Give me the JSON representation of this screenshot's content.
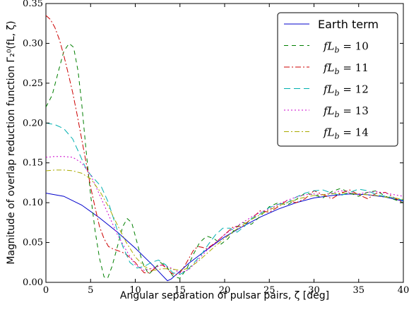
{
  "chart_data": {
    "type": "line",
    "title": "",
    "xlabel": "Angular separation of pulsar pairs, ζ [deg]",
    "ylabel": "Magnitude of overlap reduction function Γ₂⁰(fL, ζ)",
    "xlim": [
      0,
      40
    ],
    "ylim": [
      0,
      0.35
    ],
    "x_ticks": [
      0,
      5,
      10,
      15,
      20,
      25,
      30,
      35,
      40
    ],
    "x_tick_labels": [
      "0",
      "5",
      "10",
      "15",
      "20",
      "25",
      "30",
      "35",
      "40"
    ],
    "y_ticks": [
      0,
      0.05,
      0.1,
      0.15,
      0.2,
      0.25,
      0.3,
      0.35
    ],
    "y_tick_labels": [
      "0.00",
      "0.05",
      "0.10",
      "0.15",
      "0.20",
      "0.25",
      "0.30",
      "0.35"
    ],
    "grid": false,
    "legend_position": "top-right",
    "series": [
      {
        "name": "Earth term",
        "color": "#0000cc",
        "dash": "solid",
        "x": [
          0,
          2,
          4,
          6,
          8,
          10,
          12,
          13,
          13.6,
          14,
          15,
          16,
          18,
          20,
          22,
          24,
          26,
          28,
          30,
          32,
          34,
          36,
          38,
          40
        ],
        "y": [
          0.112,
          0.108,
          0.097,
          0.081,
          0.063,
          0.043,
          0.021,
          0.009,
          0.002,
          0.004,
          0.014,
          0.024,
          0.041,
          0.057,
          0.07,
          0.082,
          0.092,
          0.1,
          0.106,
          0.109,
          0.111,
          0.11,
          0.107,
          0.102
        ]
      },
      {
        "name": "fL_b = 10",
        "color": "#007f00",
        "dash": "6,5",
        "x": [
          0,
          0.7,
          1.4,
          2,
          2.6,
          3.1,
          3.6,
          4,
          4.5,
          5,
          5.5,
          6,
          6.5,
          6.9,
          7.4,
          8,
          8.6,
          9.1,
          9.6,
          10.2,
          10.8,
          11.5,
          12.2,
          12.8,
          13.5,
          14.2,
          15,
          15.8,
          16.5,
          17.2,
          18,
          18.8,
          19.6,
          20.4,
          21.2,
          22,
          23,
          24,
          25,
          26,
          27,
          28,
          29,
          30,
          31,
          32,
          33,
          34,
          35,
          36,
          37,
          38,
          39,
          40
        ],
        "y": [
          0.22,
          0.235,
          0.265,
          0.29,
          0.3,
          0.295,
          0.265,
          0.225,
          0.165,
          0.11,
          0.065,
          0.03,
          0.007,
          0.005,
          0.02,
          0.045,
          0.07,
          0.08,
          0.075,
          0.05,
          0.025,
          0.01,
          0.018,
          0.025,
          0.02,
          0.008,
          0.005,
          0.018,
          0.035,
          0.05,
          0.058,
          0.055,
          0.048,
          0.055,
          0.068,
          0.075,
          0.073,
          0.083,
          0.095,
          0.1,
          0.097,
          0.104,
          0.112,
          0.11,
          0.106,
          0.114,
          0.118,
          0.112,
          0.108,
          0.113,
          0.115,
          0.108,
          0.104,
          0.1
        ]
      },
      {
        "name": "fL_b = 11",
        "color": "#cc0000",
        "dash": "8,3,2,3",
        "x": [
          0,
          0.5,
          1,
          1.5,
          2,
          2.5,
          3,
          3.5,
          4,
          4.5,
          5,
          5.5,
          6,
          6.5,
          7,
          7.5,
          8,
          8.5,
          9,
          9.5,
          10,
          10.5,
          11,
          11.5,
          12,
          12.5,
          13,
          13.5,
          14,
          14.5,
          15,
          15.5,
          16,
          16.5,
          17,
          17.5,
          18,
          19,
          20,
          21,
          22,
          23,
          24,
          25,
          26,
          27,
          28,
          29,
          30,
          31,
          32,
          33,
          34,
          35,
          36,
          37,
          38,
          39,
          40
        ],
        "y": [
          0.335,
          0.33,
          0.32,
          0.305,
          0.285,
          0.262,
          0.238,
          0.21,
          0.18,
          0.15,
          0.12,
          0.094,
          0.07,
          0.055,
          0.045,
          0.042,
          0.04,
          0.038,
          0.035,
          0.03,
          0.025,
          0.018,
          0.012,
          0.012,
          0.016,
          0.02,
          0.022,
          0.018,
          0.012,
          0.009,
          0.012,
          0.02,
          0.03,
          0.04,
          0.045,
          0.044,
          0.042,
          0.05,
          0.06,
          0.07,
          0.07,
          0.08,
          0.09,
          0.088,
          0.095,
          0.103,
          0.1,
          0.105,
          0.115,
          0.11,
          0.105,
          0.112,
          0.116,
          0.11,
          0.105,
          0.112,
          0.113,
          0.106,
          0.1
        ]
      },
      {
        "name": "fL_b = 12",
        "color": "#00b0b0",
        "dash": "9,5",
        "x": [
          0,
          1,
          2,
          3,
          3.8,
          4.6,
          5.4,
          6.2,
          7,
          7.8,
          8.6,
          9.4,
          10.2,
          11,
          11.8,
          12.6,
          13.4,
          14.2,
          15,
          15.8,
          16.6,
          17.4,
          18.2,
          19,
          19.8,
          20.6,
          21.4,
          22.2,
          23,
          24,
          25,
          26,
          27,
          28,
          29,
          30,
          31,
          32,
          33,
          34,
          35,
          36,
          37,
          38,
          39,
          40
        ],
        "y": [
          0.2,
          0.198,
          0.193,
          0.18,
          0.16,
          0.14,
          0.13,
          0.12,
          0.1,
          0.072,
          0.045,
          0.025,
          0.018,
          0.02,
          0.025,
          0.028,
          0.022,
          0.012,
          0.01,
          0.015,
          0.025,
          0.035,
          0.048,
          0.06,
          0.068,
          0.068,
          0.063,
          0.07,
          0.08,
          0.086,
          0.094,
          0.098,
          0.1,
          0.107,
          0.112,
          0.115,
          0.116,
          0.112,
          0.109,
          0.113,
          0.117,
          0.115,
          0.11,
          0.108,
          0.106,
          0.103
        ]
      },
      {
        "name": "fL_b = 13",
        "color": "#cc00cc",
        "dash": "2,3",
        "x": [
          0,
          1,
          2,
          3,
          4,
          5,
          6,
          7,
          8,
          9,
          10,
          11,
          12,
          13,
          14,
          15,
          16,
          17,
          18,
          19,
          20,
          21,
          22,
          23,
          24,
          25,
          26,
          27,
          28,
          29,
          30,
          31,
          32,
          33,
          34,
          35,
          36,
          37,
          38,
          39,
          40
        ],
        "y": [
          0.157,
          0.158,
          0.158,
          0.157,
          0.15,
          0.135,
          0.11,
          0.085,
          0.06,
          0.04,
          0.022,
          0.015,
          0.018,
          0.022,
          0.018,
          0.012,
          0.016,
          0.028,
          0.04,
          0.05,
          0.06,
          0.068,
          0.075,
          0.082,
          0.088,
          0.092,
          0.098,
          0.103,
          0.107,
          0.11,
          0.111,
          0.11,
          0.112,
          0.115,
          0.113,
          0.111,
          0.113,
          0.114,
          0.112,
          0.11,
          0.108
        ]
      },
      {
        "name": "fL_b = 14",
        "color": "#aaaa00",
        "dash": "7,3,2,3",
        "x": [
          0,
          1,
          2,
          3,
          4,
          5,
          6,
          7,
          8,
          9,
          10,
          11,
          12,
          13,
          14,
          15,
          16,
          17,
          18,
          19,
          20,
          21,
          22,
          23,
          24,
          25,
          26,
          27,
          28,
          29,
          30,
          31,
          32,
          33,
          34,
          35,
          36,
          37,
          38,
          39,
          40
        ],
        "y": [
          0.14,
          0.141,
          0.141,
          0.14,
          0.137,
          0.13,
          0.115,
          0.095,
          0.072,
          0.05,
          0.032,
          0.02,
          0.015,
          0.017,
          0.017,
          0.015,
          0.018,
          0.026,
          0.036,
          0.046,
          0.055,
          0.064,
          0.072,
          0.079,
          0.085,
          0.091,
          0.096,
          0.1,
          0.104,
          0.107,
          0.109,
          0.11,
          0.111,
          0.112,
          0.112,
          0.111,
          0.11,
          0.109,
          0.107,
          0.106,
          0.104
        ]
      }
    ]
  }
}
